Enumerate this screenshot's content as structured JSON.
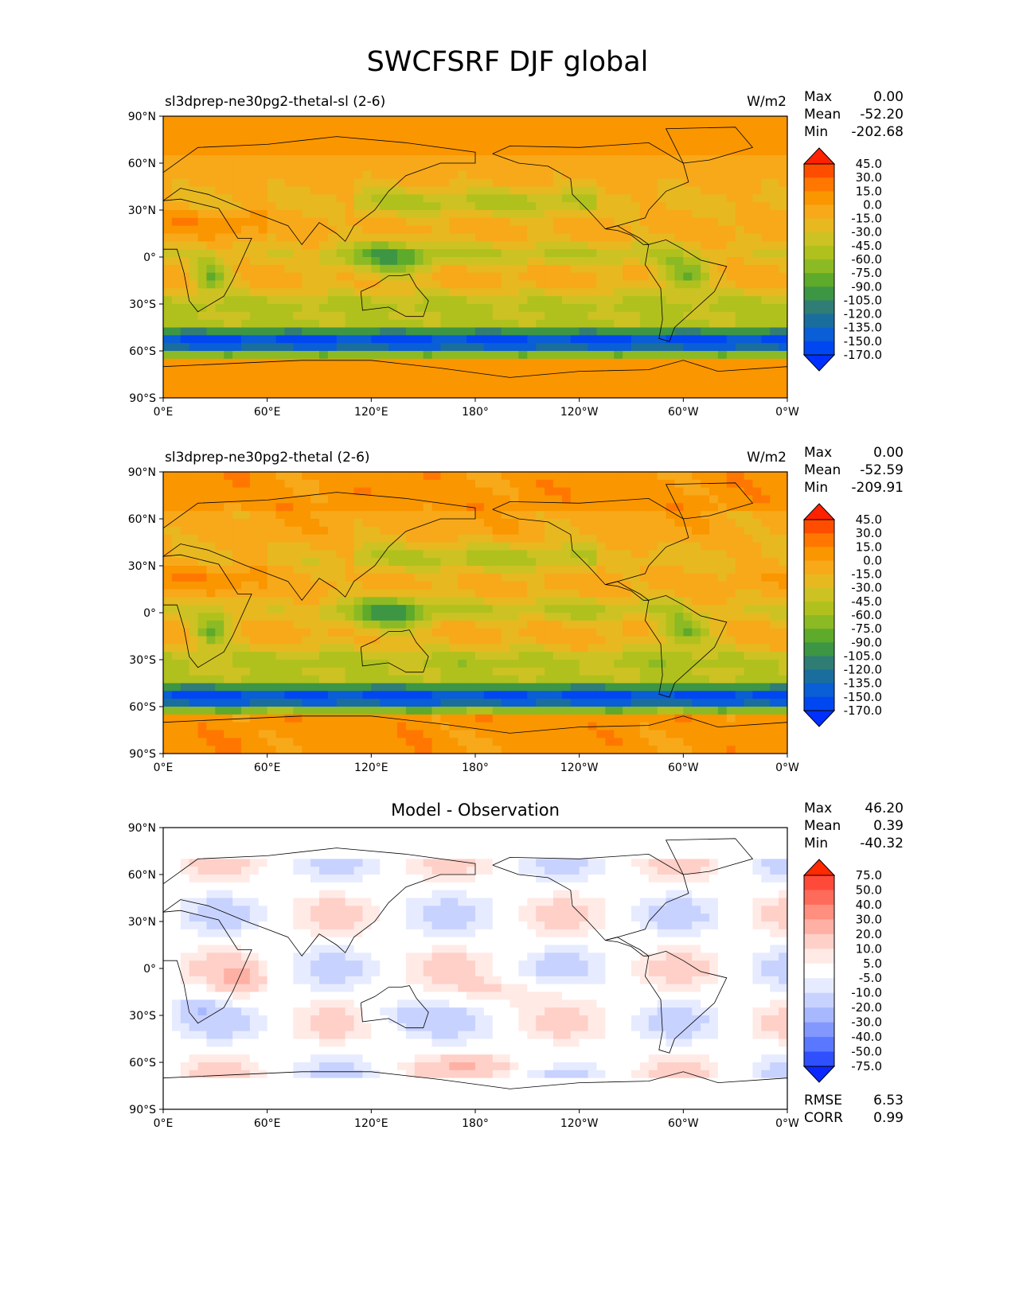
{
  "suptitle": "SWCFSRF DJF global",
  "chart_data": [
    {
      "type": "heatmap",
      "title_left": "sl3dprep-ne30pg2-thetal-sl (2-6)",
      "units": "W/m2",
      "stats": {
        "max_label": "Max",
        "max": "0.00",
        "mean_label": "Mean",
        "mean": "-52.20",
        "min_label": "Min",
        "min": "-202.68"
      },
      "colorbar_levels": [
        "45.0",
        "30.0",
        "15.0",
        "0.0",
        "-15.0",
        "-30.0",
        "-45.0",
        "-60.0",
        "-75.0",
        "-90.0",
        "-105.0",
        "-120.0",
        "-135.0",
        "-150.0",
        "-170.0"
      ],
      "colorbar_colors": [
        "#ff2200",
        "#ff4d00",
        "#ff7700",
        "#fa9600",
        "#f7a91a",
        "#e8b820",
        "#cdc223",
        "#b0c11e",
        "#8cba24",
        "#5eaa2a",
        "#3c9644",
        "#2f7d74",
        "#1a6e9e",
        "#0a5ed6",
        "#0047f2",
        "#0030ff"
      ],
      "yticks": [
        "90°N",
        "60°N",
        "30°N",
        "0°",
        "30°S",
        "60°S",
        "90°S"
      ],
      "xticks": [
        "0°E",
        "60°E",
        "120°E",
        "180°",
        "120°W",
        "60°W",
        "0°W"
      ]
    },
    {
      "type": "heatmap",
      "title_left": "sl3dprep-ne30pg2-thetal (2-6)",
      "units": "W/m2",
      "stats": {
        "max_label": "Max",
        "max": "0.00",
        "mean_label": "Mean",
        "mean": "-52.59",
        "min_label": "Min",
        "min": "-209.91"
      },
      "colorbar_levels": [
        "45.0",
        "30.0",
        "15.0",
        "0.0",
        "-15.0",
        "-30.0",
        "-45.0",
        "-60.0",
        "-75.0",
        "-90.0",
        "-105.0",
        "-120.0",
        "-135.0",
        "-150.0",
        "-170.0"
      ],
      "colorbar_colors": [
        "#ff2200",
        "#ff4d00",
        "#ff7700",
        "#fa9600",
        "#f7a91a",
        "#e8b820",
        "#cdc223",
        "#b0c11e",
        "#8cba24",
        "#5eaa2a",
        "#3c9644",
        "#2f7d74",
        "#1a6e9e",
        "#0a5ed6",
        "#0047f2",
        "#0030ff"
      ],
      "yticks": [
        "90°N",
        "60°N",
        "30°N",
        "0°",
        "30°S",
        "60°S",
        "90°S"
      ],
      "xticks": [
        "0°E",
        "60°E",
        "120°E",
        "180°",
        "120°W",
        "60°W",
        "0°W"
      ]
    },
    {
      "type": "heatmap",
      "title": "Model - Observation",
      "stats": {
        "max_label": "Max",
        "max": "46.20",
        "mean_label": "Mean",
        "mean": "0.39",
        "min_label": "Min",
        "min": "-40.32"
      },
      "extra_stats": {
        "rmse_label": "RMSE",
        "rmse": "6.53",
        "corr_label": "CORR",
        "corr": "0.99"
      },
      "colorbar_levels": [
        "75.0",
        "50.0",
        "40.0",
        "30.0",
        "20.0",
        "10.0",
        "5.0",
        "-5.0",
        "-10.0",
        "-20.0",
        "-30.0",
        "-40.0",
        "-50.0",
        "-75.0"
      ],
      "colorbar_colors": [
        "#ff2a00",
        "#ff4a3a",
        "#ff6b5a",
        "#ff8e7e",
        "#ffb0a4",
        "#ffd0c8",
        "#ffeae6",
        "#ffffff",
        "#e6ebff",
        "#c8d2ff",
        "#a8b8ff",
        "#8298ff",
        "#5a78ff",
        "#3050ff",
        "#0a28ff"
      ],
      "yticks": [
        "90°N",
        "60°N",
        "30°N",
        "0°",
        "30°S",
        "60°S",
        "90°S"
      ],
      "xticks": [
        "0°E",
        "60°E",
        "120°E",
        "180°",
        "120°W",
        "60°W",
        "0°W"
      ]
    }
  ]
}
